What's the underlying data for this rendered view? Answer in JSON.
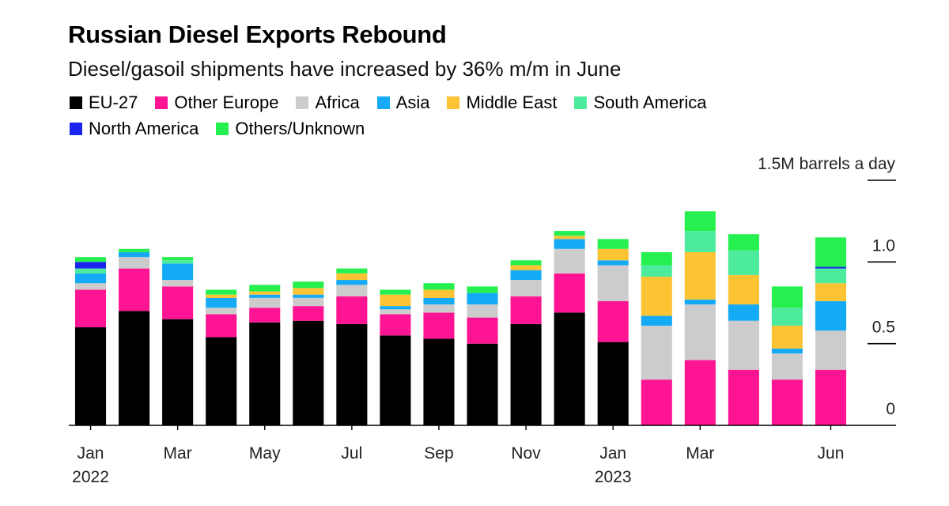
{
  "chart_data": {
    "type": "bar",
    "stacked": true,
    "title": "Russian Diesel Exports Rebound",
    "subtitle": "Diesel/gasoil shipments have increased by 36% m/m in June",
    "unit_label": "1.5M barrels a day",
    "yticks": [
      "0",
      "0.5",
      "1.0"
    ],
    "ylim": [
      0,
      1.5
    ],
    "xtick_labels": [
      {
        "index": 0,
        "label": "Jan",
        "year": "2022"
      },
      {
        "index": 2,
        "label": "Mar"
      },
      {
        "index": 4,
        "label": "May"
      },
      {
        "index": 6,
        "label": "Jul"
      },
      {
        "index": 8,
        "label": "Sep"
      },
      {
        "index": 10,
        "label": "Nov"
      },
      {
        "index": 12,
        "label": "Jan",
        "year": "2023"
      },
      {
        "index": 14,
        "label": "Mar"
      },
      {
        "index": 17,
        "label": "Jun"
      }
    ],
    "categories": [
      "Jan 2022",
      "Feb 2022",
      "Mar 2022",
      "Apr 2022",
      "May 2022",
      "Jun 2022",
      "Jul 2022",
      "Aug 2022",
      "Sep 2022",
      "Oct 2022",
      "Nov 2022",
      "Dec 2022",
      "Jan 2023",
      "Feb 2023",
      "Mar 2023",
      "Apr 2023",
      "May 2023",
      "Jun 2023"
    ],
    "series": [
      {
        "name": "EU-27",
        "color": "#000000",
        "values": [
          0.6,
          0.7,
          0.65,
          0.54,
          0.63,
          0.64,
          0.62,
          0.55,
          0.53,
          0.5,
          0.62,
          0.69,
          0.51,
          0.0,
          0.0,
          0.0,
          0.0,
          0.0
        ]
      },
      {
        "name": "Other Europe",
        "color": "#ff1493",
        "values": [
          0.23,
          0.26,
          0.2,
          0.14,
          0.09,
          0.09,
          0.17,
          0.13,
          0.16,
          0.16,
          0.17,
          0.24,
          0.25,
          0.28,
          0.4,
          0.34,
          0.28,
          0.34
        ]
      },
      {
        "name": "Africa",
        "color": "#cccccc",
        "values": [
          0.04,
          0.07,
          0.04,
          0.04,
          0.06,
          0.05,
          0.07,
          0.03,
          0.05,
          0.08,
          0.1,
          0.15,
          0.22,
          0.33,
          0.34,
          0.3,
          0.16,
          0.24
        ]
      },
      {
        "name": "Asia",
        "color": "#14aaf5",
        "values": [
          0.06,
          0.03,
          0.1,
          0.06,
          0.02,
          0.02,
          0.03,
          0.02,
          0.04,
          0.07,
          0.06,
          0.06,
          0.03,
          0.06,
          0.03,
          0.1,
          0.03,
          0.18
        ]
      },
      {
        "name": "Middle East",
        "color": "#fcc334",
        "values": [
          0.0,
          0.0,
          0.0,
          0.02,
          0.02,
          0.04,
          0.04,
          0.07,
          0.05,
          0.0,
          0.03,
          0.02,
          0.07,
          0.24,
          0.29,
          0.18,
          0.14,
          0.11
        ]
      },
      {
        "name": "South America",
        "color": "#4deb9c",
        "values": [
          0.03,
          0.0,
          0.02,
          0.0,
          0.0,
          0.0,
          0.0,
          0.0,
          0.0,
          0.0,
          0.0,
          0.0,
          0.0,
          0.07,
          0.13,
          0.15,
          0.11,
          0.09
        ]
      },
      {
        "name": "North America",
        "color": "#1a25f0",
        "values": [
          0.04,
          0.0,
          0.0,
          0.0,
          0.0,
          0.0,
          0.0,
          0.0,
          0.0,
          0.0,
          0.0,
          0.0,
          0.0,
          0.0,
          0.0,
          0.0,
          0.0,
          0.01
        ]
      },
      {
        "name": "Others/Unknown",
        "color": "#26f050",
        "values": [
          0.03,
          0.02,
          0.02,
          0.03,
          0.04,
          0.04,
          0.03,
          0.03,
          0.04,
          0.04,
          0.03,
          0.03,
          0.06,
          0.08,
          0.12,
          0.1,
          0.13,
          0.18
        ]
      }
    ]
  }
}
